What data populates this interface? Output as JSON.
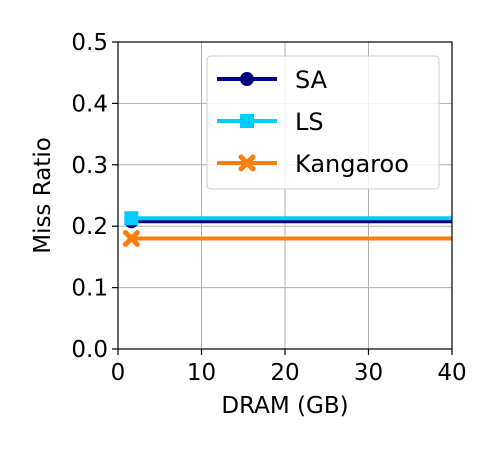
{
  "chart_data": {
    "type": "line",
    "xlabel": "DRAM (GB)",
    "ylabel": "Miss Ratio",
    "xlim": [
      0,
      40
    ],
    "ylim": [
      0,
      0.5
    ],
    "xticks": [
      0,
      10,
      20,
      30,
      40
    ],
    "yticks": [
      0.0,
      0.1,
      0.2,
      0.3,
      0.4,
      0.5
    ],
    "xtick_labels": [
      "0",
      "10",
      "20",
      "30",
      "40"
    ],
    "ytick_labels": [
      "0.0",
      "0.1",
      "0.2",
      "0.3",
      "0.4",
      "0.5"
    ],
    "grid": true,
    "legend_position": "top-right",
    "series": [
      {
        "name": "SA",
        "color": "#000080",
        "marker": "circle",
        "x": [
          1.6,
          40
        ],
        "y": [
          0.208,
          0.208
        ]
      },
      {
        "name": "LS",
        "color": "#00ccff",
        "marker": "square",
        "x": [
          1.6,
          40
        ],
        "y": [
          0.213,
          0.213
        ]
      },
      {
        "name": "Kangaroo",
        "color": "#ff7f0e",
        "marker": "x",
        "x": [
          1.6,
          40
        ],
        "y": [
          0.18,
          0.18
        ]
      }
    ]
  }
}
